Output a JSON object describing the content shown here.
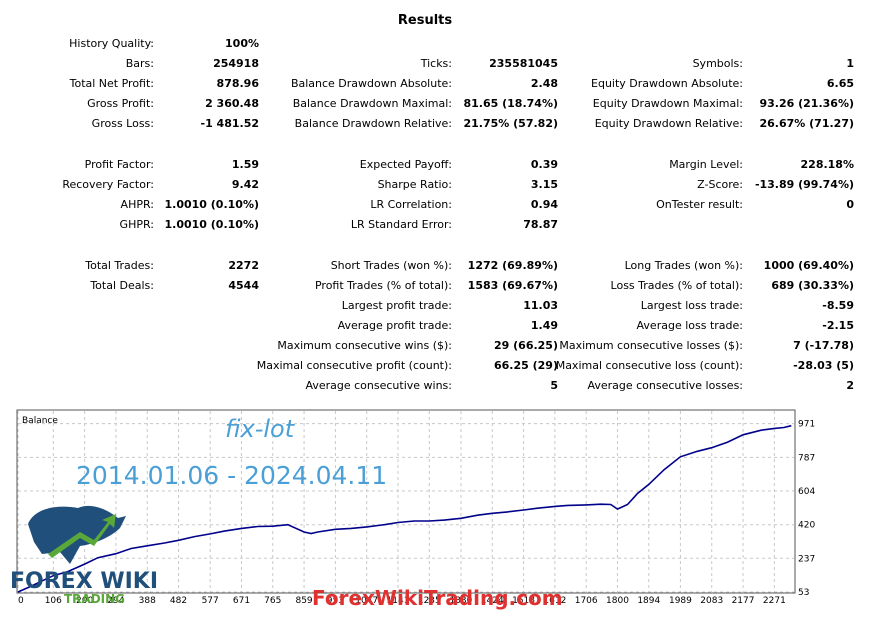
{
  "title": "Results",
  "stats": [
    {
      "col": 1,
      "row": 0,
      "label": "History Quality:",
      "value": "100%"
    },
    {
      "col": 1,
      "row": 1,
      "label": "Bars:",
      "value": "254918"
    },
    {
      "col": 1,
      "row": 2,
      "label": "Total Net Profit:",
      "value": "878.96"
    },
    {
      "col": 1,
      "row": 3,
      "label": "Gross Profit:",
      "value": "2 360.48"
    },
    {
      "col": 1,
      "row": 4,
      "label": "Gross Loss:",
      "value": "-1 481.52"
    },
    {
      "col": 1,
      "row": 6,
      "label": "Profit Factor:",
      "value": "1.59"
    },
    {
      "col": 1,
      "row": 7,
      "label": "Recovery Factor:",
      "value": "9.42"
    },
    {
      "col": 1,
      "row": 8,
      "label": "AHPR:",
      "value": "1.0010 (0.10%)"
    },
    {
      "col": 1,
      "row": 9,
      "label": "GHPR:",
      "value": "1.0010 (0.10%)"
    },
    {
      "col": 1,
      "row": 11,
      "label": "Total Trades:",
      "value": "2272"
    },
    {
      "col": 1,
      "row": 12,
      "label": "Total Deals:",
      "value": "4544"
    },
    {
      "col": 2,
      "row": 1,
      "label": "Ticks:",
      "value": "235581045"
    },
    {
      "col": 2,
      "row": 2,
      "label": "Balance Drawdown Absolute:",
      "value": "2.48"
    },
    {
      "col": 2,
      "row": 3,
      "label": "Balance Drawdown Maximal:",
      "value": "81.65 (18.74%)"
    },
    {
      "col": 2,
      "row": 4,
      "label": "Balance Drawdown Relative:",
      "value": "21.75% (57.82)"
    },
    {
      "col": 2,
      "row": 6,
      "label": "Expected Payoff:",
      "value": "0.39"
    },
    {
      "col": 2,
      "row": 7,
      "label": "Sharpe Ratio:",
      "value": "3.15"
    },
    {
      "col": 2,
      "row": 8,
      "label": "LR Correlation:",
      "value": "0.94"
    },
    {
      "col": 2,
      "row": 9,
      "label": "LR Standard Error:",
      "value": "78.87"
    },
    {
      "col": 2,
      "row": 11,
      "label": "Short Trades (won %):",
      "value": "1272 (69.89%)"
    },
    {
      "col": 2,
      "row": 12,
      "label": "Profit Trades (% of total):",
      "value": "1583 (69.67%)"
    },
    {
      "col": 2,
      "row": 13,
      "label": "Largest profit trade:",
      "value": "11.03"
    },
    {
      "col": 2,
      "row": 14,
      "label": "Average profit trade:",
      "value": "1.49"
    },
    {
      "col": 2,
      "row": 15,
      "label": "Maximum consecutive wins ($):",
      "value": "29 (66.25)"
    },
    {
      "col": 2,
      "row": 16,
      "label": "Maximal consecutive profit (count):",
      "value": "66.25 (29)"
    },
    {
      "col": 2,
      "row": 17,
      "label": "Average consecutive wins:",
      "value": "5"
    },
    {
      "col": 3,
      "row": 1,
      "label": "Symbols:",
      "value": "1"
    },
    {
      "col": 3,
      "row": 2,
      "label": "Equity Drawdown Absolute:",
      "value": "6.65"
    },
    {
      "col": 3,
      "row": 3,
      "label": "Equity Drawdown Maximal:",
      "value": "93.26 (21.36%)"
    },
    {
      "col": 3,
      "row": 4,
      "label": "Equity Drawdown Relative:",
      "value": "26.67% (71.27)"
    },
    {
      "col": 3,
      "row": 6,
      "label": "Margin Level:",
      "value": "228.18%"
    },
    {
      "col": 3,
      "row": 7,
      "label": "Z-Score:",
      "value": "-13.89 (99.74%)"
    },
    {
      "col": 3,
      "row": 8,
      "label": "OnTester result:",
      "value": "0"
    },
    {
      "col": 3,
      "row": 11,
      "label": "Long Trades (won %):",
      "value": "1000 (69.40%)"
    },
    {
      "col": 3,
      "row": 12,
      "label": "Loss Trades (% of total):",
      "value": "689 (30.33%)"
    },
    {
      "col": 3,
      "row": 13,
      "label": "Largest loss trade:",
      "value": "-8.59"
    },
    {
      "col": 3,
      "row": 14,
      "label": "Average loss trade:",
      "value": "-2.15"
    },
    {
      "col": 3,
      "row": 15,
      "label": "Maximum consecutive losses ($):",
      "value": "7 (-17.78)"
    },
    {
      "col": 3,
      "row": 16,
      "label": "Maximal consecutive loss (count):",
      "value": "-28.03 (5)"
    },
    {
      "col": 3,
      "row": 17,
      "label": "Average consecutive losses:",
      "value": "2"
    }
  ],
  "chart_data": {
    "type": "line",
    "title": "Balance",
    "x_ticks": [
      0,
      106,
      200,
      294,
      388,
      482,
      577,
      671,
      765,
      859,
      953,
      1047,
      1141,
      1235,
      1330,
      1424,
      1518,
      1612,
      1706,
      1800,
      1894,
      1989,
      2083,
      2177,
      2271
    ],
    "y_ticks": [
      53,
      237,
      420,
      604,
      787,
      971
    ],
    "ylim": [
      53,
      1040
    ],
    "xlim": [
      0,
      2330
    ],
    "line_color": "#00008b",
    "series": [
      {
        "x": [
          0,
          40,
          80,
          106,
          150,
          200,
          240,
          294,
          340,
          388,
          440,
          482,
          530,
          577,
          620,
          671,
          720,
          765,
          810,
          859,
          880,
          900,
          953,
          1000,
          1047,
          1100,
          1141,
          1190,
          1235,
          1280,
          1330,
          1380,
          1424,
          1470,
          1518,
          1560,
          1612,
          1650,
          1706,
          1750,
          1780,
          1800,
          1830,
          1860,
          1894,
          1940,
          1989,
          2040,
          2083,
          2130,
          2177,
          2230,
          2271,
          2300,
          2322
        ],
        "y": [
          53,
          85,
          120,
          142,
          165,
          205,
          240,
          262,
          290,
          305,
          320,
          335,
          355,
          370,
          385,
          400,
          410,
          412,
          420,
          380,
          372,
          380,
          395,
          400,
          408,
          420,
          432,
          440,
          440,
          445,
          455,
          472,
          482,
          490,
          500,
          510,
          520,
          525,
          528,
          532,
          530,
          505,
          530,
          590,
          640,
          720,
          790,
          820,
          840,
          870,
          910,
          935,
          945,
          950,
          960
        ]
      }
    ]
  },
  "watermarks": {
    "strategy": "fix-lot",
    "date_range": "2014.01.06 - 2024.04.11",
    "logo_text": "FOREX WIKI",
    "logo_sub": "TRADING",
    "site": "ForexWikiTrading.com"
  }
}
